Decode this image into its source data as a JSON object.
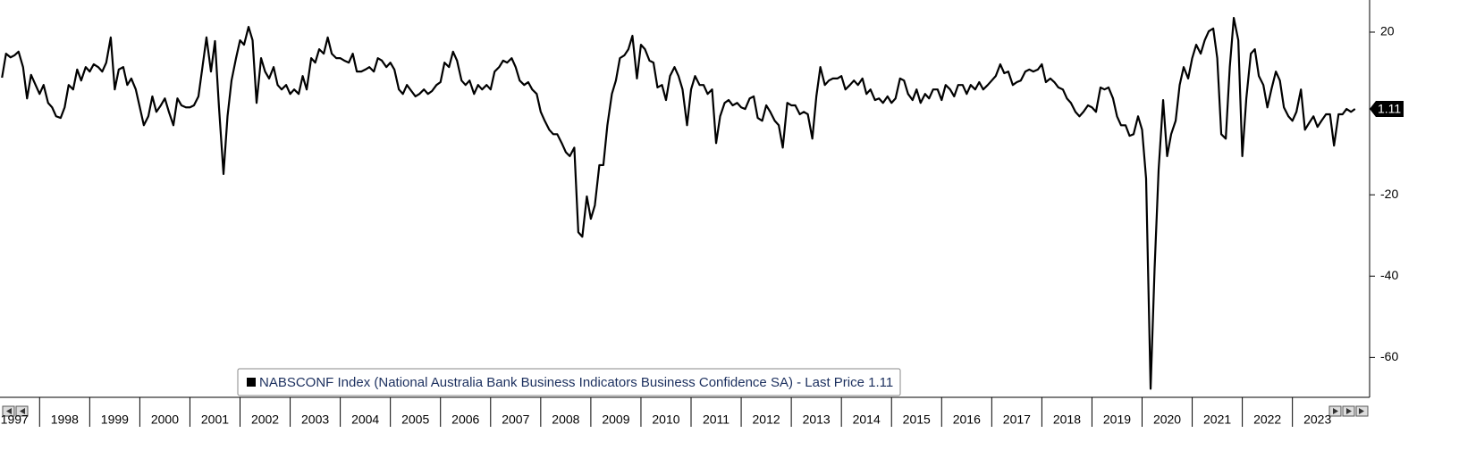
{
  "chart_data": {
    "type": "line",
    "series": [
      {
        "name": "NABSCONF Index (National Australia Bank Business Indicators Business Confidence SA) - Last Price 1.11",
        "color": "#000000",
        "values": [
          8.8,
          14.7,
          13.8,
          14.3,
          15.2,
          11.4,
          3.7,
          9.5,
          7.0,
          4.8,
          7.0,
          2.6,
          1.5,
          -0.7,
          -1.1,
          1.5,
          7.0,
          5.9,
          10.8,
          8.1,
          11.4,
          10.3,
          12.1,
          11.4,
          10.3,
          12.5,
          18.7,
          5.9,
          10.8,
          11.4,
          7.0,
          8.6,
          5.9,
          1.5,
          -2.9,
          -0.7,
          4.2,
          0.4,
          2.0,
          3.7,
          0.4,
          -2.9,
          3.7,
          2.0,
          1.5,
          1.5,
          2.0,
          4.2,
          11.4,
          18.7,
          10.3,
          17.8,
          1.5,
          -14.9,
          -0.7,
          8.1,
          13.6,
          18.0,
          16.9,
          21.3,
          18.0,
          2.6,
          13.6,
          10.3,
          8.6,
          11.4,
          7.0,
          5.9,
          7.0,
          4.8,
          5.9,
          4.8,
          9.2,
          5.9,
          13.6,
          12.5,
          15.8,
          14.7,
          18.7,
          14.7,
          13.6,
          13.6,
          13.0,
          12.5,
          14.7,
          10.3,
          10.3,
          10.8,
          11.4,
          10.3,
          13.6,
          13.0,
          11.4,
          12.5,
          10.8,
          5.9,
          4.8,
          7.0,
          5.5,
          4.2,
          4.8,
          5.9,
          4.8,
          5.5,
          7.0,
          7.7,
          12.5,
          11.4,
          15.2,
          13.0,
          8.1,
          7.0,
          8.1,
          4.8,
          7.0,
          5.9,
          7.0,
          5.9,
          10.3,
          11.4,
          13.0,
          12.5,
          13.6,
          11.4,
          8.1,
          7.0,
          7.7,
          5.9,
          4.8,
          0.4,
          -1.8,
          -4.0,
          -5.1,
          -5.1,
          -7.3,
          -9.5,
          -10.5,
          -8.4,
          -29.2,
          -30.3,
          -20.4,
          -25.9,
          -22.6,
          -12.7,
          -12.7,
          -2.9,
          4.8,
          8.1,
          13.6,
          14.3,
          15.8,
          19.1,
          8.6,
          16.9,
          15.8,
          13.0,
          12.5,
          6.4,
          7.0,
          3.3,
          9.2,
          11.4,
          9.2,
          5.9,
          -2.9,
          5.9,
          9.2,
          7.0,
          7.0,
          4.8,
          5.9,
          -7.3,
          -0.7,
          2.6,
          3.3,
          2.0,
          2.6,
          1.5,
          1.1,
          3.7,
          4.2,
          -1.1,
          -1.8,
          2.0,
          0.4,
          -1.8,
          -2.9,
          -8.4,
          2.6,
          2.0,
          2.0,
          -0.2,
          0.4,
          -0.2,
          -6.2,
          4.2,
          11.4,
          7.0,
          8.1,
          8.6,
          8.6,
          9.2,
          5.9,
          7.0,
          8.1,
          7.0,
          8.6,
          4.8,
          5.9,
          3.3,
          3.7,
          2.6,
          4.2,
          2.6,
          3.7,
          8.6,
          8.1,
          4.8,
          3.3,
          5.9,
          2.6,
          4.8,
          3.7,
          5.9,
          5.9,
          3.3,
          7.0,
          5.9,
          4.2,
          7.0,
          7.0,
          4.8,
          7.0,
          5.9,
          7.7,
          5.9,
          7.0,
          8.1,
          9.2,
          12.1,
          9.9,
          10.3,
          7.0,
          7.7,
          8.1,
          10.3,
          10.8,
          10.3,
          10.8,
          12.1,
          7.7,
          8.6,
          7.7,
          6.4,
          5.9,
          3.7,
          2.6,
          0.4,
          -0.7,
          0.4,
          2.0,
          1.5,
          0.4,
          6.4,
          5.9,
          6.4,
          3.7,
          -0.7,
          -2.9,
          -2.9,
          -5.5,
          -5.1,
          -0.7,
          -4.0,
          -16.0,
          -67.7,
          -38.0,
          -13.8,
          3.3,
          -10.5,
          -5.1,
          -1.8,
          7.0,
          11.4,
          8.6,
          13.6,
          16.9,
          14.7,
          18.0,
          20.2,
          20.9,
          13.6,
          -5.1,
          -6.2,
          11.4,
          23.5,
          18.0,
          -10.5,
          3.7,
          14.7,
          15.8,
          9.2,
          7.0,
          1.5,
          5.9,
          10.3,
          8.1,
          1.5,
          -0.7,
          -1.8,
          0.4,
          5.9,
          -4.0,
          -2.4,
          -0.7,
          -3.3,
          -1.8,
          -0.2,
          -0.2,
          -7.9,
          -0.2,
          -0.2,
          1.1,
          0.4,
          1.11
        ]
      }
    ],
    "x": [
      1997.25,
      1997.33,
      1997.42,
      1997.5,
      1997.58,
      1997.67,
      1997.75,
      1997.83,
      1997.92,
      1998.0,
      1998.08,
      1998.17,
      1998.25,
      1998.33,
      1998.42,
      1998.5,
      1998.58,
      1998.67,
      1998.75,
      1998.83,
      1998.92,
      1999.0,
      1999.08,
      1999.17,
      1999.25,
      1999.33,
      1999.42,
      1999.5,
      1999.58,
      1999.67,
      1999.75,
      1999.83,
      1999.92,
      2000.0,
      2000.08,
      2000.17,
      2000.25,
      2000.33,
      2000.42,
      2000.5,
      2000.58,
      2000.67,
      2000.75,
      2000.83,
      2000.92,
      2001.0,
      2001.08,
      2001.17,
      2001.25,
      2001.33,
      2001.42,
      2001.5,
      2001.58,
      2001.67,
      2001.75,
      2001.83,
      2001.92,
      2002.0,
      2002.08,
      2002.17,
      2002.25,
      2002.33,
      2002.42,
      2002.5,
      2002.58,
      2002.67,
      2002.75,
      2002.83,
      2002.92,
      2003.0,
      2003.08,
      2003.17,
      2003.25,
      2003.33,
      2003.42,
      2003.5,
      2003.58,
      2003.67,
      2003.75,
      2003.83,
      2003.92,
      2004.0,
      2004.08,
      2004.17,
      2004.25,
      2004.33,
      2004.42,
      2004.5,
      2004.58,
      2004.67,
      2004.75,
      2004.83,
      2004.92,
      2005.0,
      2005.08,
      2005.17,
      2005.25,
      2005.33,
      2005.42,
      2005.5,
      2005.58,
      2005.67,
      2005.75,
      2005.83,
      2005.92,
      2006.0,
      2006.08,
      2006.17,
      2006.25,
      2006.33,
      2006.42,
      2006.5,
      2006.58,
      2006.67,
      2006.75,
      2006.83,
      2006.92,
      2007.0,
      2007.08,
      2007.17,
      2007.25,
      2007.33,
      2007.42,
      2007.5,
      2007.58,
      2007.67,
      2007.75,
      2007.83,
      2007.92,
      2008.0,
      2008.08,
      2008.17,
      2008.25,
      2008.33,
      2008.42,
      2008.5,
      2008.58,
      2008.67,
      2008.75,
      2008.83,
      2008.92,
      2009.0,
      2009.08,
      2009.17,
      2009.25,
      2009.33,
      2009.42,
      2009.5,
      2009.58,
      2009.67,
      2009.75,
      2009.83,
      2009.92,
      2010.0,
      2010.08,
      2010.17,
      2010.25,
      2010.33,
      2010.42,
      2010.5,
      2010.58,
      2010.67,
      2010.75,
      2010.83,
      2010.92,
      2011.0,
      2011.08,
      2011.17,
      2011.25,
      2011.33,
      2011.42,
      2011.5,
      2011.58,
      2011.67,
      2011.75,
      2011.83,
      2011.92,
      2012.0,
      2012.08,
      2012.17,
      2012.25,
      2012.33,
      2012.42,
      2012.5,
      2012.58,
      2012.67,
      2012.75,
      2012.83,
      2012.92,
      2013.0,
      2013.08,
      2013.17,
      2013.25,
      2013.33,
      2013.42,
      2013.5,
      2013.58,
      2013.67,
      2013.75,
      2013.83,
      2013.92,
      2014.0,
      2014.08,
      2014.17,
      2014.25,
      2014.33,
      2014.42,
      2014.5,
      2014.58,
      2014.67,
      2014.75,
      2014.83,
      2014.92,
      2015.0,
      2015.08,
      2015.17,
      2015.25,
      2015.33,
      2015.42,
      2015.5,
      2015.58,
      2015.67,
      2015.75,
      2015.83,
      2015.92,
      2016.0,
      2016.08,
      2016.17,
      2016.25,
      2016.33,
      2016.42,
      2016.5,
      2016.58,
      2016.67,
      2016.75,
      2016.83,
      2016.92,
      2017.0,
      2017.08,
      2017.17,
      2017.25,
      2017.33,
      2017.42,
      2017.5,
      2017.58,
      2017.67,
      2017.75,
      2017.83,
      2017.92,
      2018.0,
      2018.08,
      2018.17,
      2018.25,
      2018.33,
      2018.42,
      2018.5,
      2018.58,
      2018.67,
      2018.75,
      2018.83,
      2018.92,
      2019.0,
      2019.08,
      2019.17,
      2019.25,
      2019.33,
      2019.42,
      2019.5,
      2019.58,
      2019.67,
      2019.75,
      2019.83,
      2019.92,
      2020.0,
      2020.08,
      2020.17,
      2020.25,
      2020.33,
      2020.42,
      2020.5,
      2020.58,
      2020.67,
      2020.75,
      2020.83,
      2020.92,
      2021.0,
      2021.08,
      2021.17,
      2021.25,
      2021.33,
      2021.42,
      2021.5,
      2021.58,
      2021.67,
      2021.75,
      2021.83,
      2021.92,
      2022.0,
      2022.08,
      2022.17,
      2022.25,
      2022.33,
      2022.42,
      2022.5,
      2022.58,
      2022.67,
      2022.75,
      2022.83,
      2022.92,
      2023.0,
      2023.08,
      2023.17,
      2023.25,
      2023.33,
      2023.42,
      2023.5,
      2023.58,
      2023.67,
      2023.75,
      2023.83,
      2023.92,
      2024.0,
      2024.08,
      2024.17,
      2024.25
    ],
    "xlim": [
      1997.21,
      2024.54
    ],
    "xticks": [
      1997,
      1998,
      1999,
      2000,
      2001,
      2002,
      2003,
      2004,
      2005,
      2006,
      2007,
      2008,
      2009,
      2010,
      2011,
      2012,
      2013,
      2014,
      2015,
      2016,
      2017,
      2018,
      2019,
      2020,
      2021,
      2022,
      2023
    ],
    "ylim": [
      -69.8,
      27.9
    ],
    "yticks": [
      20,
      -20,
      -40,
      -60
    ],
    "last_price": 1.11,
    "grid": false
  }
}
